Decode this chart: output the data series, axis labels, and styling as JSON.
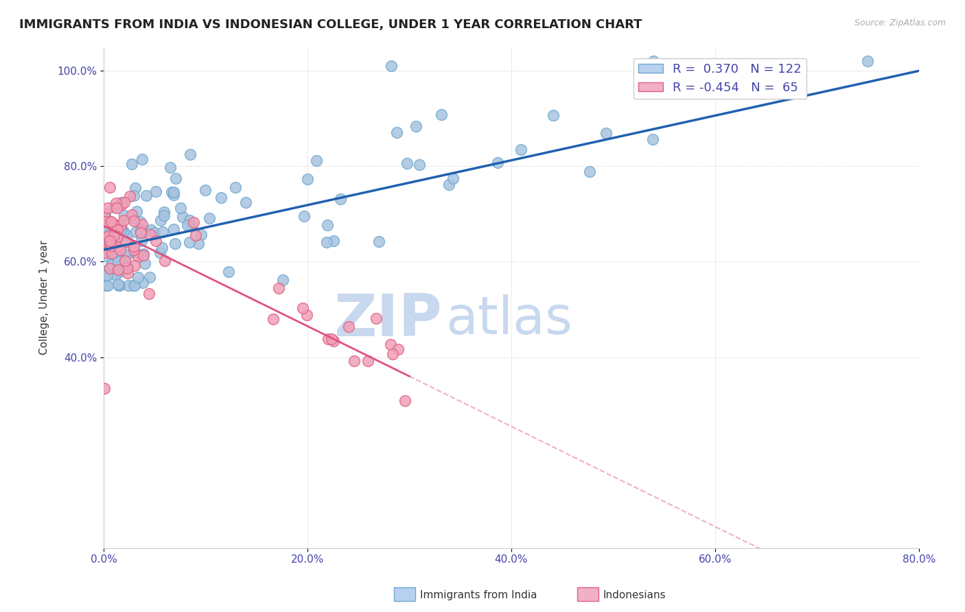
{
  "title": "IMMIGRANTS FROM INDIA VS INDONESIAN COLLEGE, UNDER 1 YEAR CORRELATION CHART",
  "source": "Source: ZipAtlas.com",
  "ylabel": "College, Under 1 year",
  "xlim": [
    0.0,
    0.8
  ],
  "ylim": [
    0.0,
    1.05
  ],
  "yticks": [
    0.4,
    0.6,
    0.8,
    1.0
  ],
  "xticks": [
    0.0,
    0.2,
    0.4,
    0.6,
    0.8
  ],
  "india_R": 0.37,
  "india_N": 122,
  "indo_R": -0.454,
  "indo_N": 65,
  "india_color": "#a8c4e0",
  "india_edge": "#6fa8d0",
  "indo_color": "#f0a0b8",
  "indo_edge": "#e06080",
  "india_line_color": "#2060b0",
  "indo_line_color": "#e05080",
  "background_color": "#ffffff",
  "grid_color": "#cccccc",
  "title_color": "#222222",
  "axis_label_color": "#4444aa",
  "legend_box_color_india": "#b8d0f0",
  "legend_box_color_indo": "#f0b0c8",
  "watermark_zip": "ZIP",
  "watermark_atlas": "atlas",
  "watermark_color_zip": "#c8d8ee",
  "watermark_color_atlas": "#c8d8ee"
}
